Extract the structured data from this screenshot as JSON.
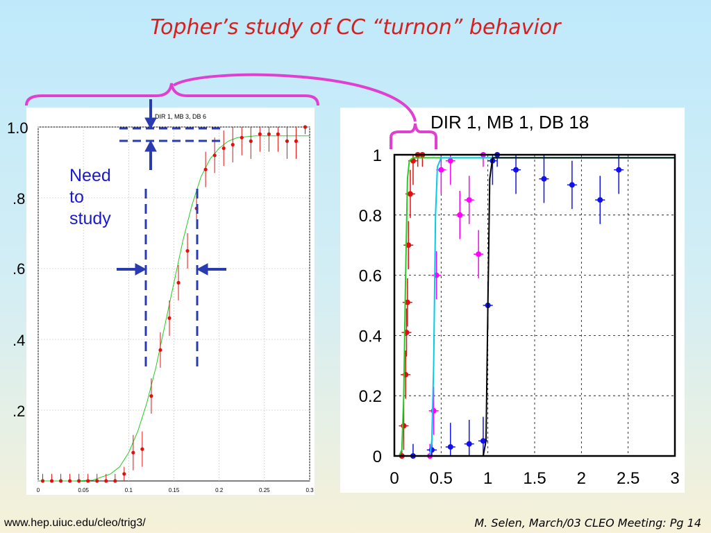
{
  "slide": {
    "title": "Topher’s study of CC “turnon” behavior",
    "title_color": "#d62020",
    "annotation": "Need\nto\nstudy",
    "footer_left": "www.hep.uiuc.edu/cleo/trig3/",
    "footer_right": "M. Selen, March/03 CLEO Meeting: Pg 14",
    "left_panel_ylabels": [
      "1.0",
      ".8",
      ".6",
      ".4",
      ".2"
    ]
  },
  "colors": {
    "bracket": "#e040d0",
    "arrow": "#2a3bb0",
    "points_red": "#e01010",
    "fit_green": "#22cc22",
    "magenta": "#ff00ff",
    "blue": "#1010ee",
    "cyan": "#00ccee"
  },
  "chart_data": [
    {
      "type": "scatter",
      "title": "DIR 1, MB 3, DB 6",
      "xlabel": "",
      "ylabel": "",
      "xlim": [
        0,
        0.3
      ],
      "ylim": [
        0,
        1.0
      ],
      "x_ticks": [
        "0",
        "0.05",
        "0.1",
        "0.15",
        "0.2",
        "0.25",
        "0.3"
      ],
      "grid": true,
      "series": [
        {
          "x": [
            0.005,
            0.015,
            0.025,
            0.035,
            0.045,
            0.055,
            0.065,
            0.075,
            0.085,
            0.095,
            0.105,
            0.115,
            0.125,
            0.135,
            0.145,
            0.155,
            0.165,
            0.175,
            0.185,
            0.195,
            0.205,
            0.215,
            0.225,
            0.235,
            0.245,
            0.255,
            0.265,
            0.275,
            0.285,
            0.295
          ],
          "y": [
            0.0,
            0.0,
            0.0,
            0.0,
            0.0,
            0.0,
            0.0,
            0.0,
            0.0,
            0.02,
            0.08,
            0.09,
            0.24,
            0.37,
            0.46,
            0.56,
            0.65,
            0.77,
            0.88,
            0.92,
            0.94,
            0.95,
            0.97,
            0.96,
            0.98,
            0.98,
            0.98,
            0.96,
            0.96,
            1.0
          ]
        },
        {
          "type": "line",
          "x": [
            0,
            0.02,
            0.04,
            0.06,
            0.08,
            0.09,
            0.1,
            0.11,
            0.12,
            0.13,
            0.14,
            0.15,
            0.16,
            0.17,
            0.18,
            0.19,
            0.2,
            0.21,
            0.22,
            0.24,
            0.26,
            0.28,
            0.3
          ],
          "y": [
            0,
            0,
            0,
            0.002,
            0.02,
            0.04,
            0.08,
            0.14,
            0.22,
            0.32,
            0.44,
            0.56,
            0.68,
            0.78,
            0.86,
            0.91,
            0.94,
            0.96,
            0.97,
            0.975,
            0.975,
            0.975,
            0.975
          ]
        }
      ]
    },
    {
      "type": "scatter",
      "title": "DIR 1, MB  1, DB 18",
      "xlabel": "",
      "ylabel": "",
      "xlim": [
        0,
        3
      ],
      "ylim": [
        0,
        1
      ],
      "x_ticks": [
        "0",
        "0.5",
        "1",
        "1.5",
        "2",
        "2.5",
        "3"
      ],
      "y_ticks": [
        "0",
        "0.2",
        "0.4",
        "0.6",
        "0.8",
        "1"
      ],
      "grid": true,
      "series": [
        {
          "color": "#e01010",
          "x": [
            0.08,
            0.1,
            0.12,
            0.13,
            0.14,
            0.15,
            0.17,
            0.2,
            0.25,
            0.3
          ],
          "y": [
            0.0,
            0.1,
            0.27,
            0.41,
            0.51,
            0.7,
            0.87,
            0.98,
            1.0,
            1.0
          ]
        },
        {
          "color": "#ff00ff",
          "x": [
            0.38,
            0.4,
            0.42,
            0.45,
            0.5,
            0.6,
            0.7,
            0.8,
            0.9,
            0.95
          ],
          "y": [
            0.0,
            0.02,
            0.15,
            0.6,
            0.95,
            0.98,
            0.8,
            0.85,
            0.67,
            1.0
          ]
        },
        {
          "color": "#1010ee",
          "x": [
            0.2,
            0.4,
            0.6,
            0.8,
            0.95,
            1.0,
            1.05,
            1.1,
            1.3,
            1.6,
            1.9,
            2.2,
            2.4
          ],
          "y": [
            0.0,
            0.02,
            0.03,
            0.04,
            0.05,
            0.5,
            0.98,
            1.0,
            0.95,
            0.92,
            0.9,
            0.85,
            0.95
          ]
        },
        {
          "type": "line",
          "color": "#22cc22",
          "x": [
            0,
            0.05,
            0.08,
            0.1,
            0.12,
            0.14,
            0.16,
            0.2,
            0.3,
            3
          ],
          "y": [
            0,
            0,
            0.02,
            0.2,
            0.6,
            0.92,
            0.98,
            0.99,
            0.99,
            0.99
          ]
        },
        {
          "type": "line",
          "color": "#00ccee",
          "x": [
            0,
            0.38,
            0.4,
            0.42,
            0.44,
            0.46,
            0.5,
            0.6,
            1,
            3
          ],
          "y": [
            0,
            0,
            0.05,
            0.3,
            0.8,
            0.96,
            0.99,
            0.99,
            0.99,
            0.99
          ]
        },
        {
          "type": "line",
          "color": "#000000",
          "x": [
            0,
            0.95,
            0.98,
            1.0,
            1.02,
            1.05,
            1.1,
            3
          ],
          "y": [
            0,
            0,
            0.05,
            0.5,
            0.92,
            0.99,
            0.99,
            0.99
          ]
        }
      ]
    }
  ]
}
